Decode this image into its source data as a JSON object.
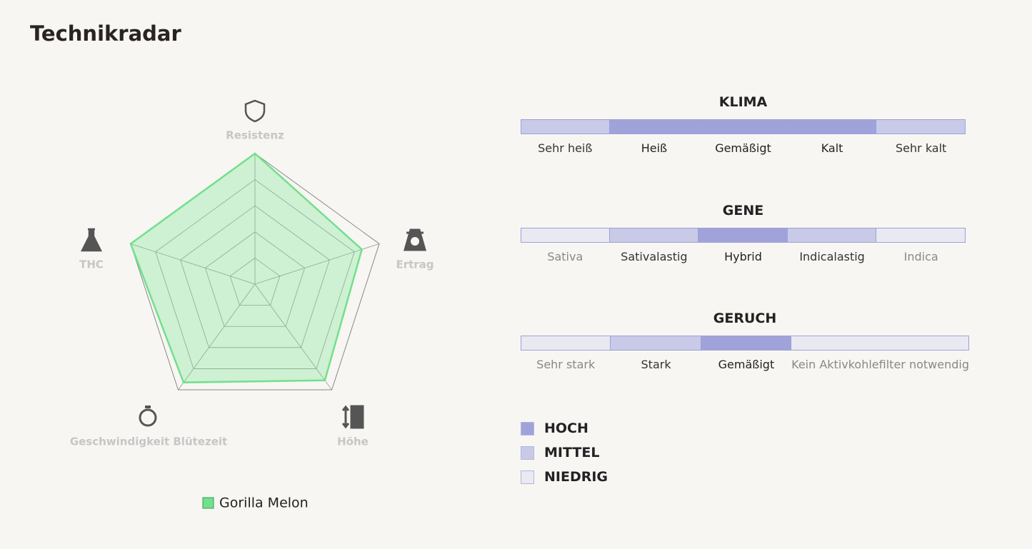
{
  "title": "Technikradar",
  "chart_data": {
    "type": "radar",
    "categories": [
      "Resistenz",
      "Ertrag",
      "Höhe",
      "Geschwindigkeit Blütezeit",
      "THC"
    ],
    "series": [
      {
        "name": "Gorilla Melon",
        "color": "#72e08c",
        "values": [
          100,
          86,
          91,
          93,
          100
        ]
      }
    ],
    "rlim": [
      0,
      100
    ],
    "rticks": [
      20,
      40,
      60,
      80,
      100
    ],
    "grid": true
  },
  "scales": [
    {
      "title": "KLIMA",
      "segments": [
        {
          "label": "Sehr heiß",
          "level": 1
        },
        {
          "label": "Heiß",
          "level": 0
        },
        {
          "label": "Gemäßigt",
          "level": 0
        },
        {
          "label": "Kalt",
          "level": 0
        },
        {
          "label": "Sehr kalt",
          "level": 1
        }
      ]
    },
    {
      "title": "GENE",
      "segments": [
        {
          "label": "Sativa",
          "level": 2
        },
        {
          "label": "Sativalastig",
          "level": 1
        },
        {
          "label": "Hybrid",
          "level": 0
        },
        {
          "label": "Indicalastig",
          "level": 1
        },
        {
          "label": "Indica",
          "level": 2
        }
      ]
    },
    {
      "title": "GERUCH",
      "segments": [
        {
          "label": "Sehr stark",
          "level": 2
        },
        {
          "label": "Stark",
          "level": 1
        },
        {
          "label": "Gemäßigt",
          "level": 0
        },
        {
          "label": "Kein Aktivkohlefilter notwendig",
          "level": 2
        }
      ]
    }
  ],
  "levels": [
    {
      "label": "HOCH",
      "color": "#a0a3da"
    },
    {
      "label": "MITTEL",
      "color": "#c8cae8"
    },
    {
      "label": "NIEDRIG",
      "color": "#e9e9f1"
    }
  ]
}
